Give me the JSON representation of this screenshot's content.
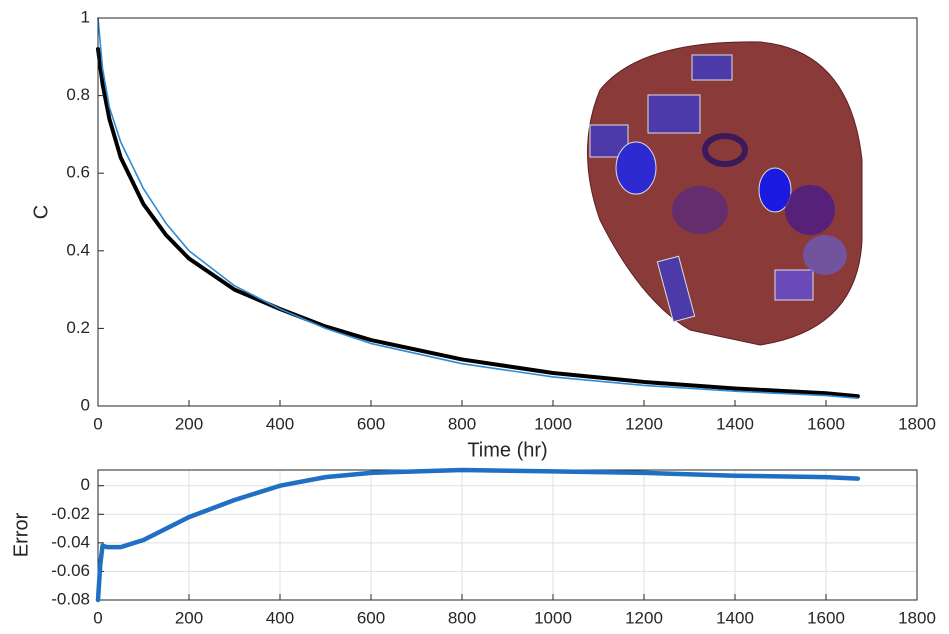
{
  "chart_data": [
    {
      "type": "line",
      "y_label": "C",
      "x_label": "Time (hr)",
      "x": [
        0,
        10,
        25,
        50,
        100,
        150,
        200,
        300,
        400,
        500,
        600,
        800,
        1000,
        1200,
        1400,
        1600,
        1670
      ],
      "series": [
        {
          "color": "#000000",
          "values": [
            0.92,
            0.83,
            0.74,
            0.64,
            0.52,
            0.44,
            0.38,
            0.3,
            0.25,
            0.205,
            0.17,
            0.12,
            0.085,
            0.062,
            0.045,
            0.033,
            0.025
          ]
        },
        {
          "color": "#2e8bd6",
          "values": [
            1.0,
            0.87,
            0.77,
            0.68,
            0.56,
            0.47,
            0.4,
            0.31,
            0.25,
            0.2,
            0.161,
            0.109,
            0.075,
            0.053,
            0.038,
            0.027,
            0.02
          ]
        }
      ],
      "xlim": [
        0,
        1800
      ],
      "xticks": [
        0,
        200,
        400,
        600,
        800,
        1000,
        1200,
        1400,
        1600,
        1800
      ],
      "ylim": [
        0,
        1
      ],
      "yticks": [
        0,
        0.2,
        0.4,
        0.6,
        0.8,
        1
      ],
      "grid": false
    },
    {
      "type": "line",
      "y_label": "Error",
      "x": [
        0,
        5,
        10,
        20,
        50,
        100,
        200,
        300,
        400,
        500,
        600,
        800,
        1000,
        1200,
        1400,
        1600,
        1670
      ],
      "series": [
        {
          "color": "#1f6fc4",
          "values": [
            -0.08,
            -0.055,
            -0.042,
            -0.043,
            -0.043,
            -0.038,
            -0.022,
            -0.01,
            0.0,
            0.006,
            0.009,
            0.011,
            0.01,
            0.009,
            0.007,
            0.006,
            0.005
          ]
        }
      ],
      "xlim": [
        0,
        1800
      ],
      "xticks": [
        0,
        200,
        400,
        600,
        800,
        1000,
        1200,
        1400,
        1600,
        1800
      ],
      "ylim": [
        -0.08,
        0.011
      ],
      "yticks": [
        -0.08,
        -0.06,
        -0.04,
        -0.02,
        0
      ],
      "grid": true
    }
  ]
}
